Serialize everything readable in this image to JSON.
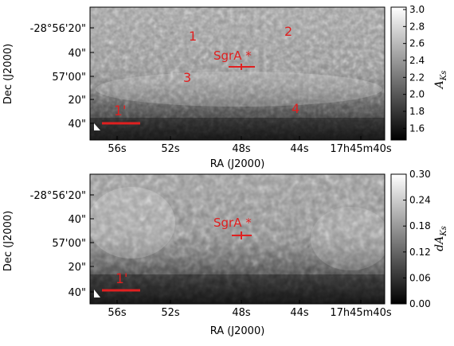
{
  "panels": [
    {
      "ra_ticks": [
        "56s",
        "52s",
        "48s",
        "44s",
        "17h45m40s"
      ],
      "dec_ticks": [
        "-28°56'20\"",
        "40\"",
        "57'00\"",
        "20\"",
        "40\""
      ],
      "xlabel": "RA (J2000)",
      "ylabel": "Dec (J2000)",
      "colorbar": {
        "label_base": "A",
        "label_sub": "Ks",
        "ticks": [
          "3.0",
          "2.8",
          "2.6",
          "2.4",
          "2.2",
          "2.0",
          "1.8",
          "1.6"
        ],
        "range": [
          1.5,
          3.0
        ]
      },
      "annotations": {
        "source": "SgrA *",
        "scale": "1'",
        "regions": [
          "1",
          "2",
          "3",
          "4"
        ]
      },
      "colors": {
        "annotation": "#e02020"
      }
    },
    {
      "ra_ticks": [
        "56s",
        "52s",
        "48s",
        "44s",
        "17h45m40s"
      ],
      "dec_ticks": [
        "-28°56'20\"",
        "40\"",
        "57'00\"",
        "20\"",
        "40\""
      ],
      "xlabel": "RA (J2000)",
      "ylabel": "Dec (J2000)",
      "colorbar": {
        "label_base": "dA",
        "label_sub": "Ks",
        "ticks": [
          "0.30",
          "0.24",
          "0.18",
          "0.12",
          "0.06",
          "0.00"
        ],
        "range": [
          0.0,
          0.3
        ]
      },
      "annotations": {
        "source": "SgrA *",
        "scale": "1'"
      },
      "colors": {
        "annotation": "#e02020"
      }
    }
  ]
}
